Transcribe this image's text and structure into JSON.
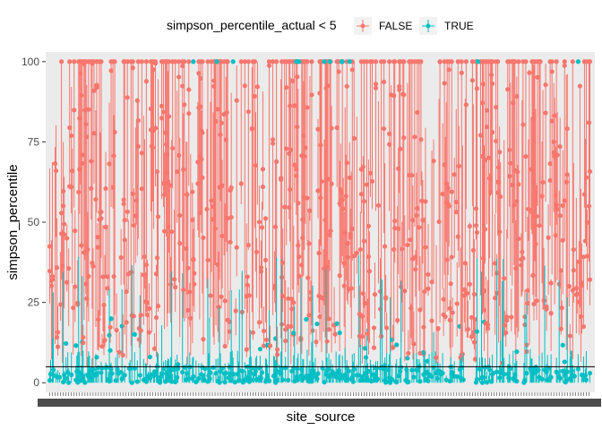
{
  "chart_data": {
    "type": "scatter",
    "xlabel": "site_source",
    "ylabel": "simpson_percentile",
    "yticks": [
      0,
      25,
      50,
      75,
      100
    ],
    "ylim": [
      -3,
      103
    ],
    "n_sites": 600,
    "reference_line": 5,
    "legend": {
      "title": "simpson_percentile_actual < 5",
      "placement": "top",
      "entries": [
        "FALSE",
        "TRUE"
      ]
    },
    "colors": {
      "FALSE": "#f8766d",
      "TRUE": "#00bfc4"
    },
    "panel_background": "#ebebeb",
    "grid": false,
    "x_tick_labels_overplotted": true,
    "series": [
      {
        "name": "FALSE",
        "y_range": [
          5,
          100
        ]
      },
      {
        "name": "TRUE",
        "y_range": [
          0,
          100
        ]
      }
    ]
  }
}
